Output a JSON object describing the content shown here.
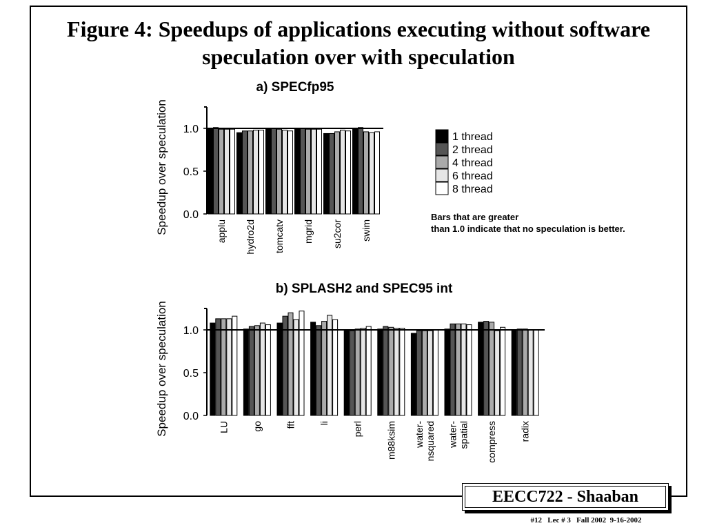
{
  "slide": {
    "title": "Figure 4: Speedups of applications executing without software speculation over with speculation",
    "annotation_lines": [
      "Bars that are greater",
      "than 1.0 indicate that no speculation is better."
    ],
    "footer_badge": "EECC722 - Shaaban",
    "footer_info": "#12   Lec # 3   Fall 2002  9-16-2002"
  },
  "legend": {
    "series": [
      "1 thread",
      "2 thread",
      "4 thread",
      "6 thread",
      "8 thread"
    ],
    "colors": [
      "#000000",
      "#555555",
      "#aaaaaa",
      "#e6e6e6",
      "#ffffff"
    ]
  },
  "chart_data": [
    {
      "type": "bar",
      "title": "a) SPECfp95",
      "ylabel": "Speedup over speculation",
      "xlabel": "",
      "ylim": [
        0,
        1.25
      ],
      "yticks": [
        0.0,
        0.5,
        1.0
      ],
      "ytick_labels": [
        "0.0",
        "0.5",
        "1.0"
      ],
      "reference_line": 1.0,
      "categories": [
        "applu",
        "hydro2d",
        "tomcatv",
        "mgrid",
        "su2cor",
        "swim"
      ],
      "series": [
        {
          "name": "1 thread",
          "values": [
            1.0,
            0.95,
            1.0,
            1.0,
            0.94,
            1.0
          ]
        },
        {
          "name": "2 thread",
          "values": [
            1.01,
            0.97,
            1.0,
            1.0,
            0.94,
            1.01
          ]
        },
        {
          "name": "4 thread",
          "values": [
            0.99,
            0.97,
            0.99,
            0.99,
            0.96,
            0.96
          ]
        },
        {
          "name": "6 thread",
          "values": [
            0.99,
            0.98,
            0.98,
            0.99,
            0.98,
            0.95
          ]
        },
        {
          "name": "8 thread",
          "values": [
            0.99,
            0.98,
            0.97,
            0.99,
            0.97,
            0.96
          ]
        }
      ]
    },
    {
      "type": "bar",
      "title": "b) SPLASH2 and SPEC95 int",
      "ylabel": "Speedup over speculation",
      "xlabel": "",
      "ylim": [
        0,
        1.25
      ],
      "yticks": [
        0.0,
        0.5,
        1.0
      ],
      "ytick_labels": [
        "0.0",
        "0.5",
        "1.0"
      ],
      "reference_line": 1.0,
      "categories": [
        "LU",
        "go",
        "fft",
        "li",
        "perl",
        "m88ksim",
        "water-\nnsquared",
        "water-\nspatial",
        "compress",
        "radix"
      ],
      "series": [
        {
          "name": "1 thread",
          "values": [
            1.08,
            1.01,
            1.08,
            1.09,
            1.0,
            1.01,
            0.96,
            1.01,
            1.09,
            0.99
          ]
        },
        {
          "name": "2 thread",
          "values": [
            1.13,
            1.04,
            1.16,
            1.05,
            0.99,
            1.04,
            0.99,
            1.07,
            1.1,
            1.01
          ]
        },
        {
          "name": "4 thread",
          "values": [
            1.13,
            1.05,
            1.2,
            1.1,
            1.01,
            1.03,
            0.99,
            1.07,
            1.09,
            1.01
          ]
        },
        {
          "name": "6 thread",
          "values": [
            1.13,
            1.08,
            1.12,
            1.17,
            1.02,
            1.02,
            0.99,
            1.07,
            0.99,
            1.0
          ]
        },
        {
          "name": "8 thread",
          "values": [
            1.16,
            1.06,
            1.22,
            1.12,
            1.04,
            1.02,
            1.0,
            1.06,
            1.03,
            1.0
          ]
        }
      ]
    }
  ]
}
